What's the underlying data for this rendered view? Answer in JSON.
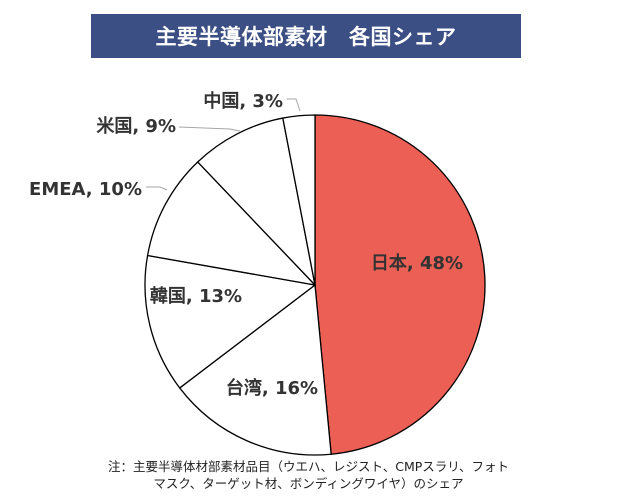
{
  "title": "主要半導体部素材　各国シェア",
  "colors": {
    "title_bg": "#3c4f84",
    "title_text": "#ffffff",
    "highlight_slice": "#eb5f55",
    "other_slice": "#ffffff",
    "slice_stroke": "#000000",
    "label_text": "#333333"
  },
  "chart_data": {
    "type": "pie",
    "title": "主要半導体部素材　各国シェア",
    "categories": [
      "日本",
      "台湾",
      "韓国",
      "EMEA",
      "米国",
      "中国"
    ],
    "values": [
      48,
      16,
      13,
      10,
      9,
      3
    ],
    "unit": "%",
    "data_labels": [
      "日本, 48%",
      "台湾, 16%",
      "韓国, 13%",
      "EMEA, 10%",
      "米国, 9%",
      "中国, 3%"
    ],
    "start": "12 o'clock",
    "direction": "clockwise",
    "highlighted": "日本",
    "legend": "none"
  },
  "footnote": {
    "line1": "注：主要半導体材部素材品目（ウエハ、レジスト、CMPスラリ、フォト",
    "line2": "マスク、ターゲット材、ボンディングワイヤ）のシェア"
  }
}
